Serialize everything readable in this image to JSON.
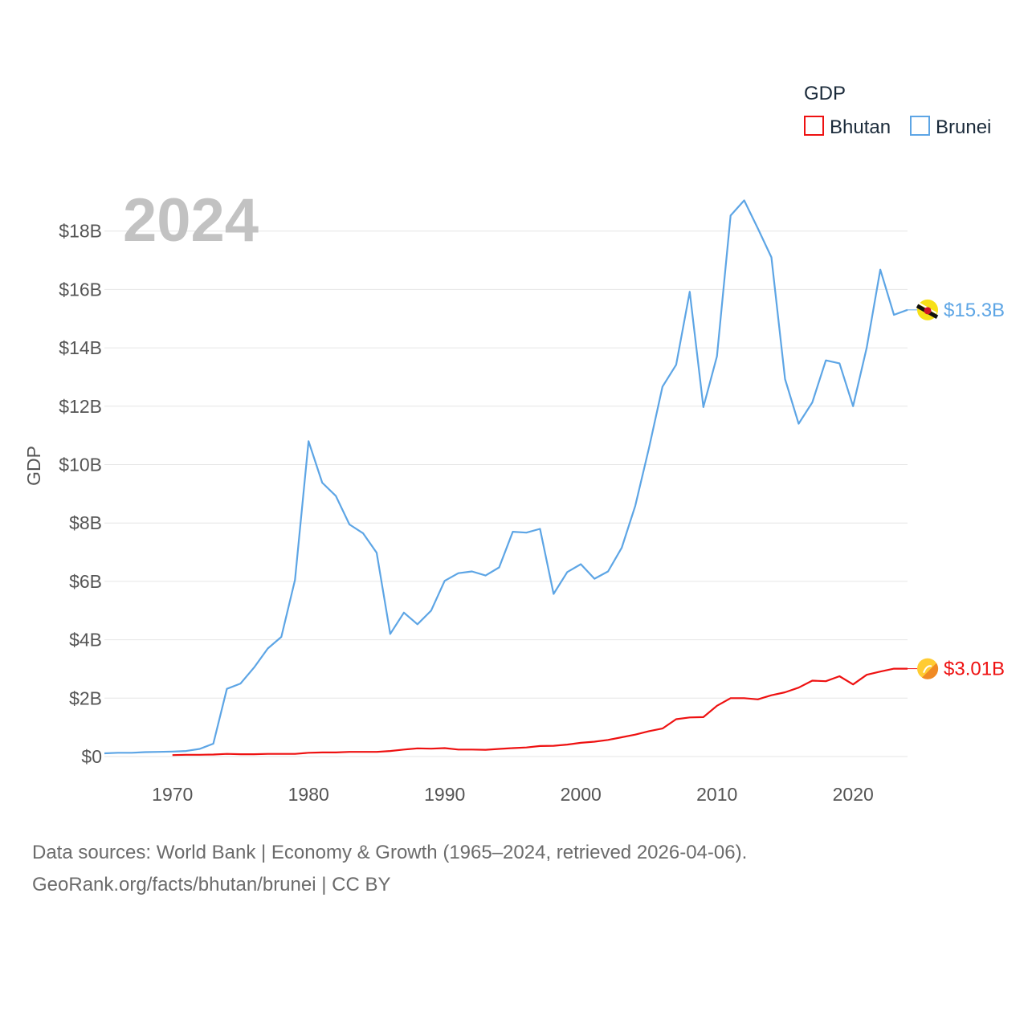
{
  "chart_data": {
    "type": "line",
    "year_label": "2024",
    "ylabel": "GDP",
    "legend": {
      "title": "GDP",
      "placement": "top-right"
    },
    "xlim": [
      1965,
      2024
    ],
    "ylim": [
      0,
      19.5
    ],
    "x_ticks": [
      1970,
      1980,
      1990,
      2000,
      2010,
      2020
    ],
    "y_ticks": [
      {
        "value": 0,
        "label": "$0"
      },
      {
        "value": 2,
        "label": "$2B"
      },
      {
        "value": 4,
        "label": "$4B"
      },
      {
        "value": 6,
        "label": "$6B"
      },
      {
        "value": 8,
        "label": "$8B"
      },
      {
        "value": 10,
        "label": "$10B"
      },
      {
        "value": 12,
        "label": "$12B"
      },
      {
        "value": 14,
        "label": "$14B"
      },
      {
        "value": 16,
        "label": "$16B"
      },
      {
        "value": 18,
        "label": "$18B"
      }
    ],
    "series": [
      {
        "name": "Bhutan",
        "color": "#ee1111",
        "end_label": "$3.01B",
        "flag_colors": [
          "#ffcc33",
          "#f08a24"
        ],
        "x": [
          1970,
          1971,
          1972,
          1973,
          1974,
          1975,
          1976,
          1977,
          1978,
          1979,
          1980,
          1981,
          1982,
          1983,
          1984,
          1985,
          1986,
          1987,
          1988,
          1989,
          1990,
          1991,
          1992,
          1993,
          1994,
          1995,
          1996,
          1997,
          1998,
          1999,
          2000,
          2001,
          2002,
          2003,
          2004,
          2005,
          2006,
          2007,
          2008,
          2009,
          2010,
          2011,
          2012,
          2013,
          2014,
          2015,
          2016,
          2017,
          2018,
          2019,
          2020,
          2021,
          2022,
          2023,
          2024
        ],
        "values": [
          0.05,
          0.06,
          0.06,
          0.07,
          0.09,
          0.08,
          0.08,
          0.09,
          0.09,
          0.09,
          0.13,
          0.14,
          0.14,
          0.16,
          0.16,
          0.16,
          0.19,
          0.24,
          0.28,
          0.27,
          0.29,
          0.24,
          0.24,
          0.23,
          0.26,
          0.29,
          0.31,
          0.36,
          0.37,
          0.41,
          0.47,
          0.51,
          0.57,
          0.66,
          0.75,
          0.87,
          0.96,
          1.28,
          1.34,
          1.35,
          1.74,
          2.0,
          2.0,
          1.96,
          2.1,
          2.2,
          2.36,
          2.6,
          2.58,
          2.75,
          2.47,
          2.8,
          2.91,
          3.01,
          3.01
        ]
      },
      {
        "name": "Brunei",
        "color": "#5da5e5",
        "end_label": "$15.3B",
        "flag_colors": [
          "#f7e017",
          "#111111",
          "#ffffff",
          "#cf1126"
        ],
        "x": [
          1965,
          1966,
          1967,
          1968,
          1969,
          1970,
          1971,
          1972,
          1973,
          1974,
          1975,
          1976,
          1977,
          1978,
          1979,
          1980,
          1981,
          1982,
          1983,
          1984,
          1985,
          1986,
          1987,
          1988,
          1989,
          1990,
          1991,
          1992,
          1993,
          1994,
          1995,
          1996,
          1997,
          1998,
          1999,
          2000,
          2001,
          2002,
          2003,
          2004,
          2005,
          2006,
          2007,
          2008,
          2009,
          2010,
          2011,
          2012,
          2013,
          2014,
          2015,
          2016,
          2017,
          2018,
          2019,
          2020,
          2021,
          2022,
          2023,
          2024
        ],
        "values": [
          0.11,
          0.13,
          0.13,
          0.15,
          0.16,
          0.17,
          0.19,
          0.26,
          0.44,
          2.32,
          2.5,
          3.05,
          3.7,
          4.1,
          6.05,
          10.8,
          9.38,
          8.93,
          7.95,
          7.65,
          6.98,
          4.2,
          4.93,
          4.53,
          5.0,
          6.02,
          6.28,
          6.34,
          6.2,
          6.48,
          7.7,
          7.67,
          7.8,
          5.57,
          6.32,
          6.59,
          6.09,
          6.34,
          7.15,
          8.59,
          10.56,
          12.67,
          13.42,
          15.92,
          11.97,
          13.71,
          18.53,
          19.05,
          18.09,
          17.1,
          12.93,
          11.4,
          12.13,
          13.57,
          13.47,
          12.0,
          14.01,
          16.68,
          15.13,
          15.3
        ]
      }
    ]
  },
  "footer": {
    "line1": "Data sources: World Bank | Economy & Growth (1965–2024, retrieved 2026-04-06).",
    "line2": "GeoRank.org/facts/bhutan/brunei | CC BY"
  }
}
